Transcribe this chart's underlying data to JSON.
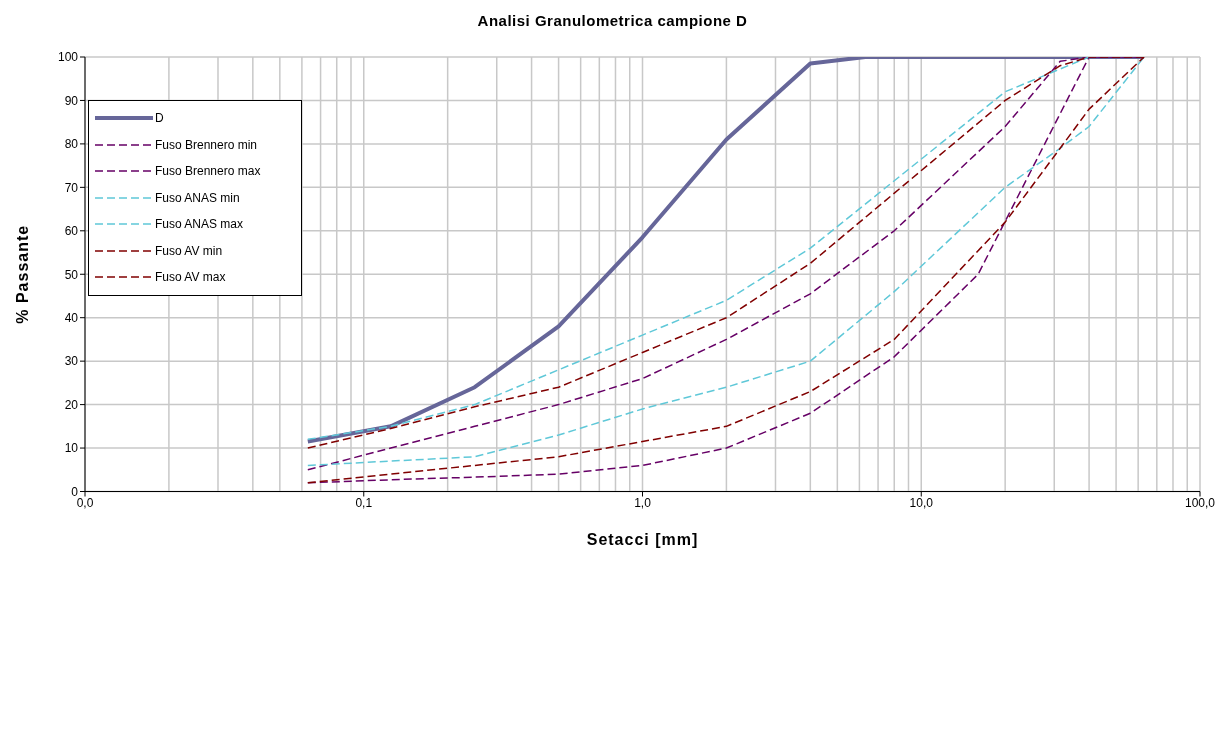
{
  "chart_data": {
    "type": "line",
    "title": "Analisi Granulometrica campione D",
    "xlabel": "Setacci [mm]",
    "ylabel": "% Passante",
    "log": "x",
    "grid": true,
    "legend": "top left",
    "marker": "none",
    "xlim": [
      0.01,
      100
    ],
    "xticks": [
      {
        "value": 0.01,
        "label": "0,0"
      },
      {
        "value": 0.1,
        "label": "0,1"
      },
      {
        "value": 1,
        "label": "1,0"
      },
      {
        "value": 10,
        "label": "10,0"
      },
      {
        "value": 100,
        "label": "100,0"
      }
    ],
    "ylim": [
      0,
      100
    ],
    "yticks": [
      0,
      10,
      20,
      30,
      40,
      50,
      60,
      70,
      80,
      90,
      100
    ],
    "series": [
      {
        "name": "D",
        "color": "#666699",
        "line_style": "solid",
        "x": [
          0.063,
          0.125,
          0.25,
          0.5,
          1,
          2,
          4,
          6.3,
          63
        ],
        "values": [
          11.5,
          15,
          24,
          38,
          58.5,
          81,
          98.5,
          100,
          100
        ]
      },
      {
        "name": "Fuso Brennero min",
        "color": "#660066",
        "line_style": "dashed",
        "x": [
          0.063,
          0.125,
          0.25,
          0.5,
          1,
          2,
          4,
          8,
          16,
          40,
          63
        ],
        "values": [
          2,
          2.7,
          3.3,
          4,
          6,
          10,
          18,
          31,
          50,
          100,
          100
        ]
      },
      {
        "name": "Fuso Brennero max",
        "color": "#660066",
        "line_style": "dashed",
        "x": [
          0.063,
          0.125,
          0.25,
          0.5,
          1,
          2,
          4,
          8,
          20,
          31.5,
          40,
          63
        ],
        "values": [
          5,
          10,
          15,
          20,
          26,
          35,
          45.5,
          60,
          84,
          99,
          100,
          100
        ]
      },
      {
        "name": "Fuso ANAS min",
        "color": "#5fc8d8",
        "line_style": "dashed",
        "x": [
          0.063,
          0.125,
          0.25,
          0.5,
          1,
          2,
          4,
          8,
          20,
          31.5,
          40,
          63
        ],
        "values": [
          6,
          7,
          8,
          13,
          19,
          24,
          30,
          46,
          70,
          79,
          84,
          100
        ]
      },
      {
        "name": "Fuso ANAS max",
        "color": "#5fc8d8",
        "line_style": "dashed",
        "x": [
          0.063,
          0.125,
          0.25,
          0.5,
          1,
          2,
          4,
          20,
          40
        ],
        "values": [
          12,
          15,
          20,
          28,
          36,
          44,
          56,
          92,
          100
        ]
      },
      {
        "name": "Fuso AV min",
        "color": "#800000",
        "line_style": "dashed",
        "x": [
          0.063,
          0.125,
          0.25,
          0.5,
          1,
          2,
          4,
          8,
          20,
          31.5,
          40,
          63
        ],
        "values": [
          2,
          4,
          6,
          8,
          11.5,
          15,
          23,
          35,
          62,
          79,
          88,
          100
        ]
      },
      {
        "name": "Fuso AV max",
        "color": "#800000",
        "line_style": "dashed",
        "x": [
          0.063,
          0.125,
          0.25,
          0.5,
          1,
          2,
          4,
          20,
          31.5,
          40,
          63
        ],
        "values": [
          10,
          14.5,
          19.5,
          24,
          32,
          40,
          52.5,
          90,
          98,
          100,
          100
        ]
      }
    ]
  }
}
